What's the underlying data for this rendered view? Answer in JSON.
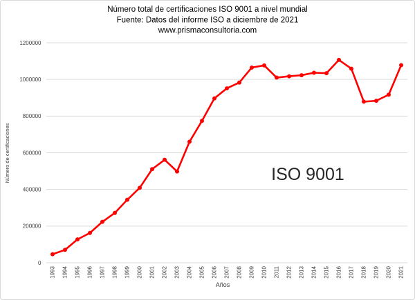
{
  "chart_data": {
    "type": "line",
    "title": "Número total de certificaciones ISO 9001 a nivel mundial",
    "subtitle": "Fuente: Datos del informe ISO  a diciembre de 2021",
    "website": "www.prismaconsultoria.com",
    "xlabel": "Años",
    "ylabel": "Número de certificaciones",
    "annotation": "ISO 9001",
    "legend": "none",
    "grid": "horizontal-only",
    "marker": "circle",
    "categories": [
      "1993",
      "1994",
      "1995",
      "1996",
      "1997",
      "1998",
      "1999",
      "2000",
      "2001",
      "2002",
      "2003",
      "2004",
      "2005",
      "2006",
      "2007",
      "2008",
      "2009",
      "2010",
      "2011",
      "2012",
      "2013",
      "2014",
      "2015",
      "2016",
      "2017",
      "2018",
      "2019",
      "2020",
      "2021"
    ],
    "series": [
      {
        "name": "ISO 9001",
        "color": "#FF0000",
        "values": [
          46571,
          70364,
          127349,
          162701,
          223299,
          271847,
          343643,
          408631,
          510616,
          561747,
          497919,
          660132,
          773867,
          896872,
          951486,
          982832,
          1064785,
          1076525,
          1009845,
          1017279,
          1022877,
          1036321,
          1034180,
          1106356,
          1058504,
          878664,
          883521,
          916842,
          1077884
        ]
      }
    ],
    "ylim": [
      0,
      1200000
    ],
    "ytick_step": 200000,
    "ytick_labels": [
      "0",
      "200000",
      "400000",
      "600000",
      "800000",
      "1000000",
      "1200000"
    ],
    "colors": {
      "line": "#FF0000",
      "gridline": "#D9D9D9",
      "axis_text": "#404040",
      "title_text": "#000000",
      "annotation_text": "#262626",
      "frame_border": "#D9D9D9",
      "background": "#FFFFFF"
    }
  }
}
